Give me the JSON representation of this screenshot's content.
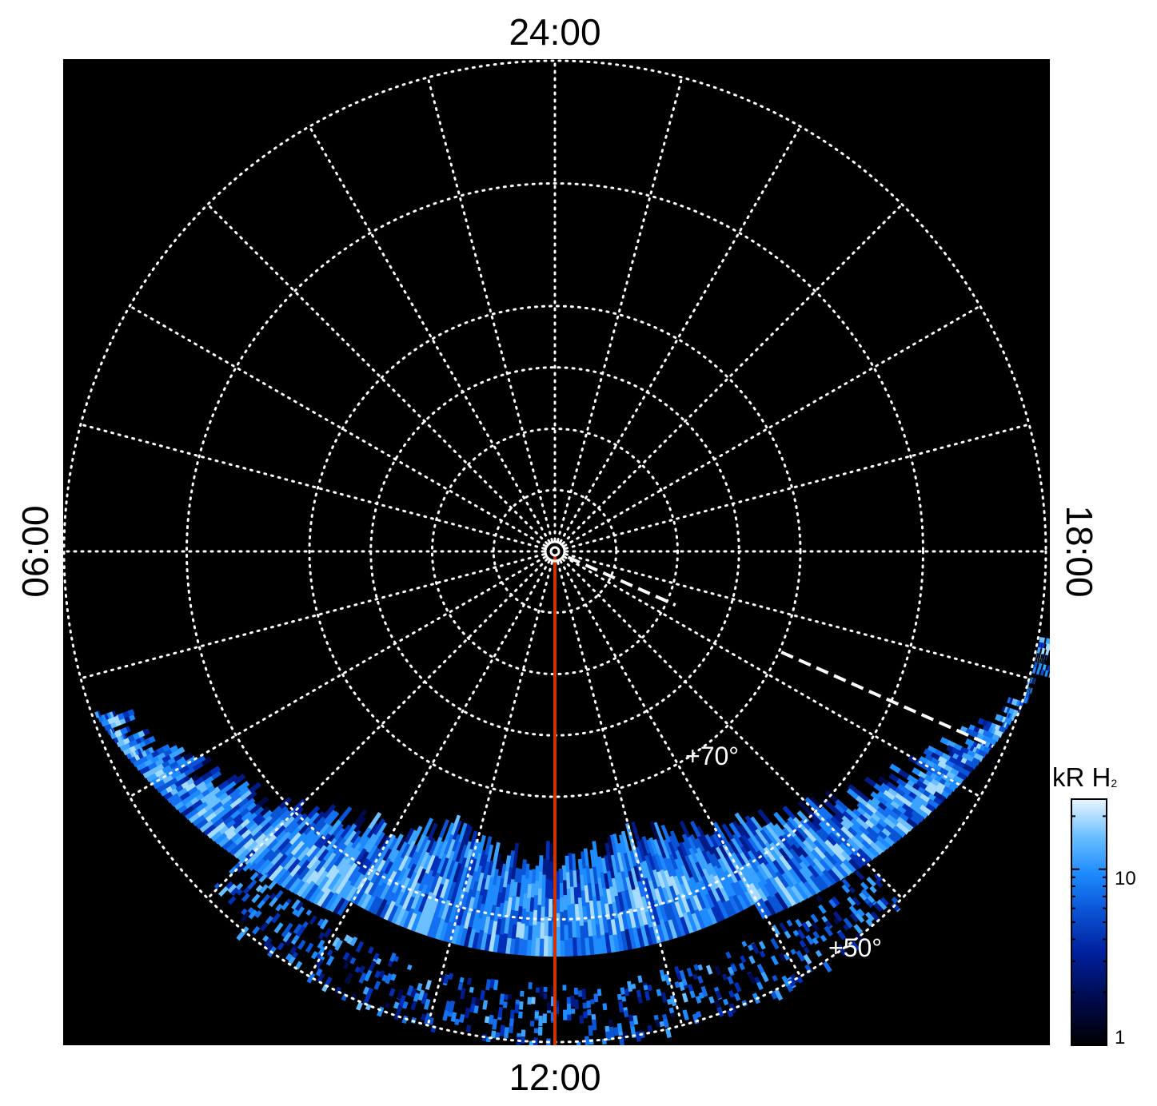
{
  "plot": {
    "background": "#000000",
    "projection": "north polar (local time / latitude)",
    "center_lat": 90,
    "outer_lat": 50,
    "lat_circles_deg": [
      85,
      80,
      75,
      70,
      60,
      50
    ],
    "meridian_step_hours": 1,
    "local_time_labels": {
      "top": "24:00",
      "bottom": "12:00",
      "left": "06:00",
      "right": "18:00"
    },
    "lat_labels": {
      "l70": "+70°",
      "l50": "+50°"
    },
    "grid_color": "#ffffff",
    "meridian_marker_color": "#cc3300",
    "meridian_marker_lt": "12:00",
    "dashed_marker": "dashed white line toward ~16:00 LT"
  },
  "colorbar": {
    "unit_main": "kR H",
    "unit_sub": "2",
    "scale": "log",
    "min": 1,
    "max": 25,
    "ticks": [
      "10",
      "1"
    ],
    "colors": [
      "#000000",
      "#000a4a",
      "#00209e",
      "#0a55d6",
      "#1e8cff",
      "#6cc0ff",
      "#e8f6ff"
    ]
  }
}
